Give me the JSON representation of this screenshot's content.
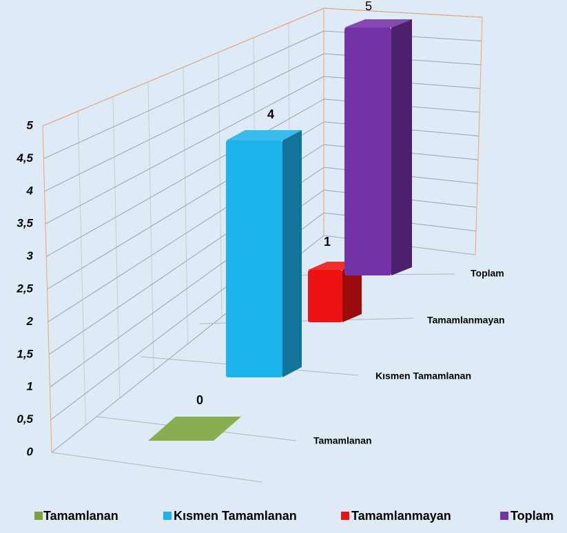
{
  "chart_data": {
    "type": "bar3d",
    "categories": [
      "Tamamlanan",
      "Kısmen Tamamlanan",
      "Tamamlanmayan",
      "Toplam"
    ],
    "values": [
      0,
      4,
      1,
      5
    ],
    "colors": [
      "#78a33b",
      "#1cb2ea",
      "#f01212",
      "#7332a6"
    ],
    "ylim": [
      0,
      5
    ],
    "yticks": [
      0,
      {
        "value": 0.5,
        "label": "0,5"
      },
      1,
      {
        "value": 1.5,
        "label": "1,5"
      },
      2,
      {
        "value": 2.5,
        "label": "2,5"
      },
      3,
      {
        "value": 3.5,
        "label": "3,5"
      },
      4,
      {
        "value": 4.5,
        "label": "4,5"
      },
      5
    ],
    "grid": true
  }
}
